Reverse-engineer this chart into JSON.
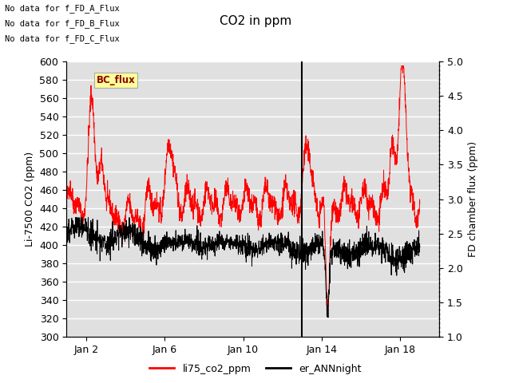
{
  "title": "CO2 in ppm",
  "ylabel_left": "Li-7500 CO2 (ppm)",
  "ylabel_right": "FD chamber flux (ppm)",
  "ylim_left": [
    300,
    600
  ],
  "ylim_right": [
    1.0,
    5.0
  ],
  "yticks_left": [
    300,
    320,
    340,
    360,
    380,
    400,
    420,
    440,
    460,
    480,
    500,
    520,
    540,
    560,
    580,
    600
  ],
  "yticks_right": [
    1.0,
    1.5,
    2.0,
    2.5,
    3.0,
    3.5,
    4.0,
    4.5,
    5.0
  ],
  "no_data_texts": [
    "No data for f_FD_A_Flux",
    "No data for f_FD_B_Flux",
    "No data for f_FD_C_Flux"
  ],
  "bc_flux_label": "BC_flux",
  "legend_entries": [
    "li75_co2_ppm",
    "er_ANNnight"
  ],
  "legend_colors": [
    "red",
    "black"
  ],
  "vline_x": 12.0,
  "background_color": "#e0e0e0",
  "grid_color": "white",
  "red_line_color": "red",
  "black_line_color": "black",
  "x_tick_labels": [
    "Jan 2",
    "Jan 6",
    "Jan 10",
    "Jan 14",
    "Jan 18"
  ],
  "x_tick_positions": [
    1,
    5,
    9,
    13,
    17
  ],
  "xlim": [
    0,
    19
  ]
}
